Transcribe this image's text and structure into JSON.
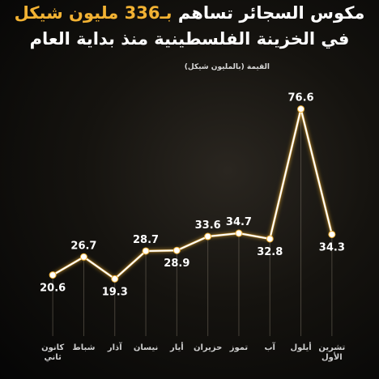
{
  "chart_data": {
    "type": "line",
    "title_lines": [
      [
        {
          "text": "مكوس السجائر تساهم ",
          "color": "#ffffff"
        },
        {
          "text": "بـ336 مليون شيكل",
          "color": "#f2b233"
        }
      ],
      [
        {
          "text": "في الخزينة الفلسطينية منذ بداية العام",
          "color": "#ffffff"
        }
      ]
    ],
    "y_label": "القيمة (بالمليون شيكل)",
    "categories": [
      "كانون ثاني",
      "شباط",
      "آذار",
      "نيسان",
      "أيار",
      "حزيران",
      "تموز",
      "آب",
      "أيلول",
      "تشرين الأول"
    ],
    "values": [
      20.6,
      26.7,
      19.3,
      28.7,
      28.9,
      33.6,
      34.7,
      32.8,
      76.6,
      34.3
    ],
    "color": "#ffffff",
    "glow_color": "#f2b233",
    "ylim": [
      0,
      100
    ]
  }
}
